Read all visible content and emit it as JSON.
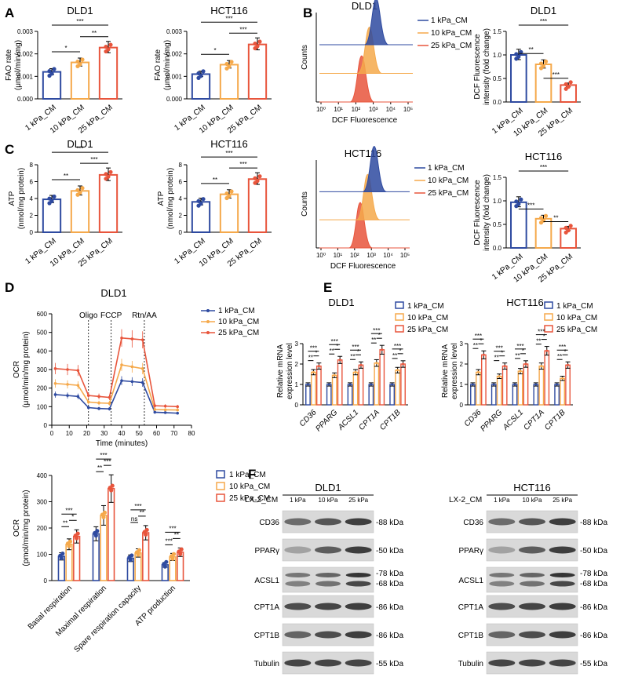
{
  "colors": {
    "c1": "#2e4aa0",
    "c2": "#f5a94b",
    "c3": "#e8553c"
  },
  "panels": {
    "A": {
      "letter": "A",
      "charts": [
        {
          "title": "DLD1",
          "ylabel": "FAO rate",
          "ylabel2": "(μmol/min/mg)",
          "ticks": [
            "0.000",
            "0.001",
            "0.002",
            "0.003"
          ],
          "ymax": 0.003,
          "cats": [
            "1 kPa_CM",
            "10 kPa_CM",
            "25 kPa_CM"
          ],
          "values": [
            0.0012,
            0.00162,
            0.00228
          ],
          "sig": [
            {
              "a": 0,
              "b": 1,
              "t": "*"
            },
            {
              "a": 1,
              "b": 2,
              "t": "**"
            },
            {
              "a": 0,
              "b": 2,
              "t": "***"
            }
          ]
        },
        {
          "title": "HCT116",
          "ylabel": "FAO rate",
          "ylabel2": "(μmol/min/mg)",
          "ticks": [
            "0.000",
            "0.001",
            "0.002",
            "0.003"
          ],
          "ymax": 0.003,
          "cats": [
            "1 kPa_CM",
            "10 kPa_CM",
            "25 kPa_CM"
          ],
          "values": [
            0.0011,
            0.00152,
            0.00242
          ],
          "sig": [
            {
              "a": 0,
              "b": 1,
              "t": "*"
            },
            {
              "a": 1,
              "b": 2,
              "t": "***"
            },
            {
              "a": 0,
              "b": 2,
              "t": "***"
            }
          ]
        }
      ]
    },
    "B": {
      "letter": "B",
      "hist": {
        "title": "DLD1",
        "ylabel": "Counts",
        "xlabel": "DCF Fluorescence",
        "xticks": [
          "10⁰",
          "10¹",
          "10²",
          "10³",
          "10⁴",
          "10⁵"
        ],
        "legend": [
          "1 kPa_CM",
          "10 kPa_CM",
          "25 kPa_CM"
        ]
      },
      "bar": {
        "title": "DLD1",
        "ylabel": "DCF Fluorescence",
        "ylabel2": "intensity (fold change)",
        "ticks": [
          "0.0",
          "0.5",
          "1.0",
          "1.5"
        ],
        "ymax": 1.5,
        "cats": [
          "1 kPa_CM",
          "10 kPa_CM",
          "25 kPa_CM"
        ],
        "values": [
          1.0,
          0.8,
          0.36
        ],
        "sig": [
          {
            "a": 0,
            "b": 1,
            "t": "**"
          },
          {
            "a": 1,
            "b": 2,
            "t": "***"
          },
          {
            "a": 0,
            "b": 2,
            "t": "***"
          }
        ]
      }
    },
    "C": {
      "letter": "C",
      "charts": [
        {
          "title": "DLD1",
          "ylabel": "ATP",
          "ylabel2": "(nmol/mg protein)",
          "ticks": [
            "0",
            "2",
            "4",
            "6",
            "8"
          ],
          "ymax": 8,
          "cats": [
            "1 kPa_CM",
            "10 kPa_CM",
            "25 kPa_CM"
          ],
          "values": [
            3.9,
            4.9,
            6.8
          ],
          "sig": [
            {
              "a": 0,
              "b": 1,
              "t": "**"
            },
            {
              "a": 1,
              "b": 2,
              "t": "***"
            },
            {
              "a": 0,
              "b": 2,
              "t": "***"
            }
          ]
        },
        {
          "title": "HCT116",
          "ylabel": "ATP",
          "ylabel2": "(nmol/mg protein)",
          "ticks": [
            "0",
            "2",
            "4",
            "6",
            "8"
          ],
          "ymax": 8,
          "cats": [
            "1 kPa_CM",
            "10 kPa_CM",
            "25 kPa_CM"
          ],
          "values": [
            3.6,
            4.5,
            6.3
          ],
          "sig": [
            {
              "a": 0,
              "b": 1,
              "t": "**"
            },
            {
              "a": 1,
              "b": 2,
              "t": "***"
            },
            {
              "a": 0,
              "b": 2,
              "t": "***"
            }
          ]
        }
      ],
      "hist": {
        "title": "HCT116",
        "ylabel": "Counts",
        "xlabel": "DCF Fluorescence",
        "xticks": [
          "10⁰",
          "10¹",
          "10²",
          "10³",
          "10⁴",
          "10⁵"
        ],
        "legend": [
          "1 kPa_CM",
          "10 kPa_CM",
          "25 kPa_CM"
        ]
      },
      "bar": {
        "title": "HCT116",
        "ylabel": "DCF Fluorescence",
        "ylabel2": "intensity (fold change)",
        "ticks": [
          "0.0",
          "0.5",
          "1.0",
          "1.5"
        ],
        "ymax": 1.5,
        "cats": [
          "1 kPa_CM",
          "10 kPa_CM",
          "25 kPa_CM"
        ],
        "values": [
          0.97,
          0.62,
          0.41
        ],
        "sig": [
          {
            "a": 0,
            "b": 1,
            "t": "***"
          },
          {
            "a": 1,
            "b": 2,
            "t": "**"
          },
          {
            "a": 0,
            "b": 2,
            "t": "***"
          }
        ]
      }
    },
    "D": {
      "letter": "D",
      "line": {
        "title": "DLD1",
        "ylabel": "OCR",
        "ylabel2": "(μmol/min/mg protein)",
        "xlabel": "Time (minutes)",
        "yticks": [
          "0",
          "100",
          "200",
          "300",
          "400",
          "500",
          "600"
        ],
        "ymax": 600,
        "xticks": [
          "0",
          "10",
          "20",
          "30",
          "40",
          "50",
          "60",
          "70",
          "80"
        ],
        "xmax": 80,
        "injections": [
          {
            "label": "Oligo",
            "x": 21
          },
          {
            "label": "FCCP",
            "x": 34
          },
          {
            "label": "Rtn/AA",
            "x": 53
          }
        ],
        "legend": [
          "1 kPa_CM",
          "10 kPa_CM",
          "25 kPa_CM"
        ],
        "x": [
          2,
          9,
          15,
          21,
          27,
          33,
          40,
          46,
          52,
          59,
          65,
          72
        ],
        "series": [
          {
            "name": "1 kPa_CM",
            "values": [
              165,
              160,
              155,
              95,
              90,
              88,
              240,
              235,
              230,
              70,
              68,
              65
            ]
          },
          {
            "name": "10 kPa_CM",
            "values": [
              225,
              220,
              215,
              125,
              120,
              118,
              325,
              315,
              305,
              85,
              83,
              82
            ]
          },
          {
            "name": "25 kPa_CM",
            "values": [
              305,
              300,
              295,
              160,
              155,
              150,
              470,
              465,
              460,
              105,
              103,
              100
            ]
          }
        ]
      },
      "bar": {
        "ylabel": "OCR",
        "ylabel2": "(pmol/min/mg protein)",
        "yticks": [
          "0",
          "100",
          "200",
          "300",
          "400"
        ],
        "ymax": 400,
        "legend": [
          "1 kPa_CM",
          "10 kPa_CM",
          "25 kPa_CM"
        ],
        "cats": [
          "Basal respiration",
          "Maximal respiration",
          "Spare respiration capacity",
          "ATP production"
        ],
        "series": [
          [
            92,
            178,
            85,
            60
          ],
          [
            138,
            248,
            105,
            90
          ],
          [
            168,
            350,
            182,
            108
          ]
        ],
        "sig": [
          [
            "**",
            "*",
            "***"
          ],
          [
            "**",
            "***",
            "***"
          ],
          [
            "ns",
            "**",
            "***"
          ],
          [
            "***",
            "**",
            "***"
          ]
        ]
      }
    },
    "E": {
      "letter": "E",
      "legend": [
        "1 kPa_CM",
        "10 kPa_CM",
        "25 kPa_CM"
      ],
      "charts": [
        {
          "title": "DLD1",
          "ylabel": "Relative mRNA",
          "ylabel2": "expression level",
          "yticks": [
            "0",
            "1",
            "2",
            "3"
          ],
          "ymax": 3,
          "genes": [
            "CD36",
            "PPARG",
            "ACSL1",
            "CPT1A",
            "CPT1B"
          ],
          "series": [
            [
              1,
              1,
              1,
              1,
              1
            ],
            [
              1.6,
              1.45,
              1.6,
              2.05,
              1.7
            ],
            [
              1.9,
              2.2,
              1.95,
              2.7,
              2.0
            ]
          ]
        },
        {
          "title": "HCT116",
          "ylabel": "Relative mRNA",
          "ylabel2": "expression level",
          "yticks": [
            "0",
            "1",
            "2",
            "3"
          ],
          "ymax": 3,
          "genes": [
            "CD36",
            "PPARG",
            "ACSL1",
            "CPT1A",
            "CPT1B"
          ],
          "series": [
            [
              1,
              1,
              1,
              1,
              1
            ],
            [
              1.6,
              1.4,
              1.65,
              1.9,
              1.3
            ],
            [
              2.45,
              1.9,
              2.0,
              2.65,
              1.95
            ]
          ]
        }
      ]
    },
    "F": {
      "letter": "F",
      "row_header": "LX-2_CM",
      "blots": [
        {
          "title": "DLD1",
          "lanes": [
            "1 kPa",
            "10 kPa",
            "25 kPa"
          ],
          "proteins": [
            "CD36",
            "PPARγ",
            "ACSL1",
            "CPT1A",
            "CPT1B",
            "Tubulin"
          ],
          "markers": [
            [
              "-88 kDa"
            ],
            [
              "-50 kDa"
            ],
            [
              "-78 kDa",
              "-68 kDa"
            ],
            [
              "-86 kDa"
            ],
            [
              "-86 kDa"
            ],
            [
              "-55 kDa"
            ]
          ]
        },
        {
          "title": "HCT116",
          "lanes": [
            "1 kPa",
            "10 kPa",
            "25 kPa"
          ],
          "proteins": [
            "CD36",
            "PPARγ",
            "ACSL1",
            "CPT1A",
            "CPT1B",
            "Tubulin"
          ],
          "markers": [
            [
              "-88 kDa"
            ],
            [
              "-50 kDa"
            ],
            [
              "-78 kDa",
              "-68 kDa"
            ],
            [
              "-86 kDa"
            ],
            [
              "-86 kDa"
            ],
            [
              "-55 kDa"
            ]
          ]
        }
      ]
    }
  }
}
